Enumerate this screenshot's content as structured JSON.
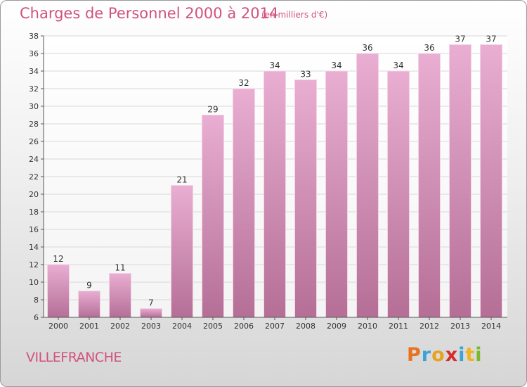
{
  "chart_data": {
    "type": "bar",
    "title": "Charges de Personnel 2000 à 2014",
    "subtitle": "(en milliers d'€)",
    "categories": [
      "2000",
      "2001",
      "2002",
      "2003",
      "2004",
      "2005",
      "2006",
      "2007",
      "2008",
      "2009",
      "2010",
      "2011",
      "2012",
      "2013",
      "2014"
    ],
    "values": [
      12,
      9,
      11,
      7,
      21,
      29,
      32,
      34,
      33,
      34,
      36,
      34,
      36,
      37,
      37
    ],
    "ylim": [
      6,
      38
    ],
    "yticks": [
      6,
      8,
      10,
      12,
      14,
      16,
      18,
      20,
      22,
      24,
      26,
      28,
      30,
      32,
      34,
      36,
      38
    ],
    "grid": true,
    "bar_color": "#e3a3c8",
    "bar_color_dark": "#b56f96"
  },
  "location": "VILLEFRANCHE",
  "logo": {
    "text": "Proxiti",
    "letters": [
      {
        "ch": "P",
        "color": "#e8731e"
      },
      {
        "ch": "r",
        "color": "#3aa3d8"
      },
      {
        "ch": "o",
        "color": "#e8a21e"
      },
      {
        "ch": "x",
        "color": "#d92b2b"
      },
      {
        "ch": "i",
        "color": "#3aa3d8"
      },
      {
        "ch": "t",
        "color": "#f0b31c"
      },
      {
        "ch": "i",
        "color": "#7bb92c"
      }
    ]
  },
  "colors": {
    "title": "#d2527c",
    "axis_text": "#333333"
  }
}
